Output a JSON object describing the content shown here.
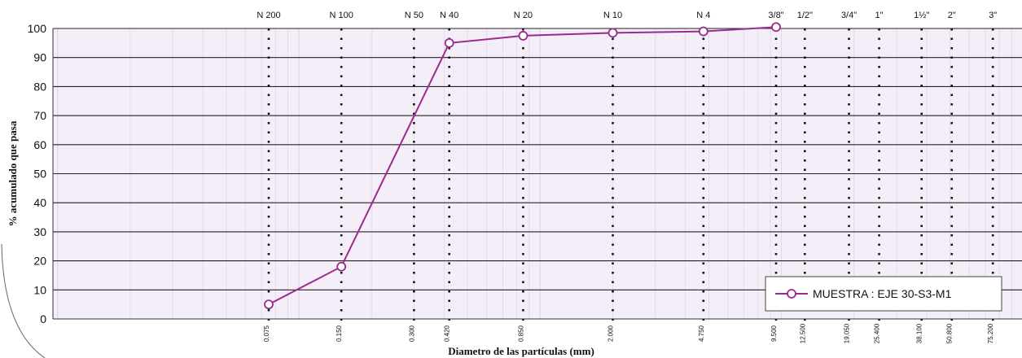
{
  "chart_data": {
    "type": "line",
    "ylabel": "% acumulado que pasa",
    "xlabel": "Diametro de las partículas (mm)",
    "xscale": "log",
    "ylim": [
      0,
      100
    ],
    "y_ticks": [
      "0",
      "10",
      "20",
      "30",
      "40",
      "50",
      "60",
      "70",
      "80",
      "90",
      "100"
    ],
    "sieves": [
      {
        "label": "N 200",
        "size": 0.075,
        "size_label": "0.075"
      },
      {
        "label": "N 100",
        "size": 0.15,
        "size_label": "0.150"
      },
      {
        "label": "N 50",
        "size": 0.3,
        "size_label": "0.300"
      },
      {
        "label": "N 40",
        "size": 0.42,
        "size_label": "0.420"
      },
      {
        "label": "N 20",
        "size": 0.85,
        "size_label": "0.850"
      },
      {
        "label": "N 10",
        "size": 2.0,
        "size_label": "2.000"
      },
      {
        "label": "N 4",
        "size": 4.75,
        "size_label": "4.750"
      },
      {
        "label": "3/8\"",
        "size": 9.5,
        "size_label": "9.500"
      },
      {
        "label": "1/2\"",
        "size": 12.5,
        "size_label": "12.500"
      },
      {
        "label": "3/4\"",
        "size": 19.05,
        "size_label": "19.050"
      },
      {
        "label": "1\"",
        "size": 25.4,
        "size_label": "25.400"
      },
      {
        "label": "1½\"",
        "size": 38.1,
        "size_label": "38.100"
      },
      {
        "label": "2\"",
        "size": 50.8,
        "size_label": "50.800"
      },
      {
        "label": "3\"",
        "size": 75.2,
        "size_label": "75.200"
      }
    ],
    "series": [
      {
        "name": "MUESTRA : EJE 30-S3-M1",
        "color": "#9b2a8f",
        "x": [
          0.075,
          0.15,
          0.42,
          0.85,
          2.0,
          4.75,
          9.5
        ],
        "y": [
          5,
          18,
          95,
          97.5,
          98.5,
          99,
          100.5
        ]
      }
    ],
    "legend_position": "bottom-right",
    "grid": true,
    "colors": {
      "plot_bg": "#f4eef8",
      "grid": "#e2d6e8",
      "major_line": "#222222"
    }
  }
}
